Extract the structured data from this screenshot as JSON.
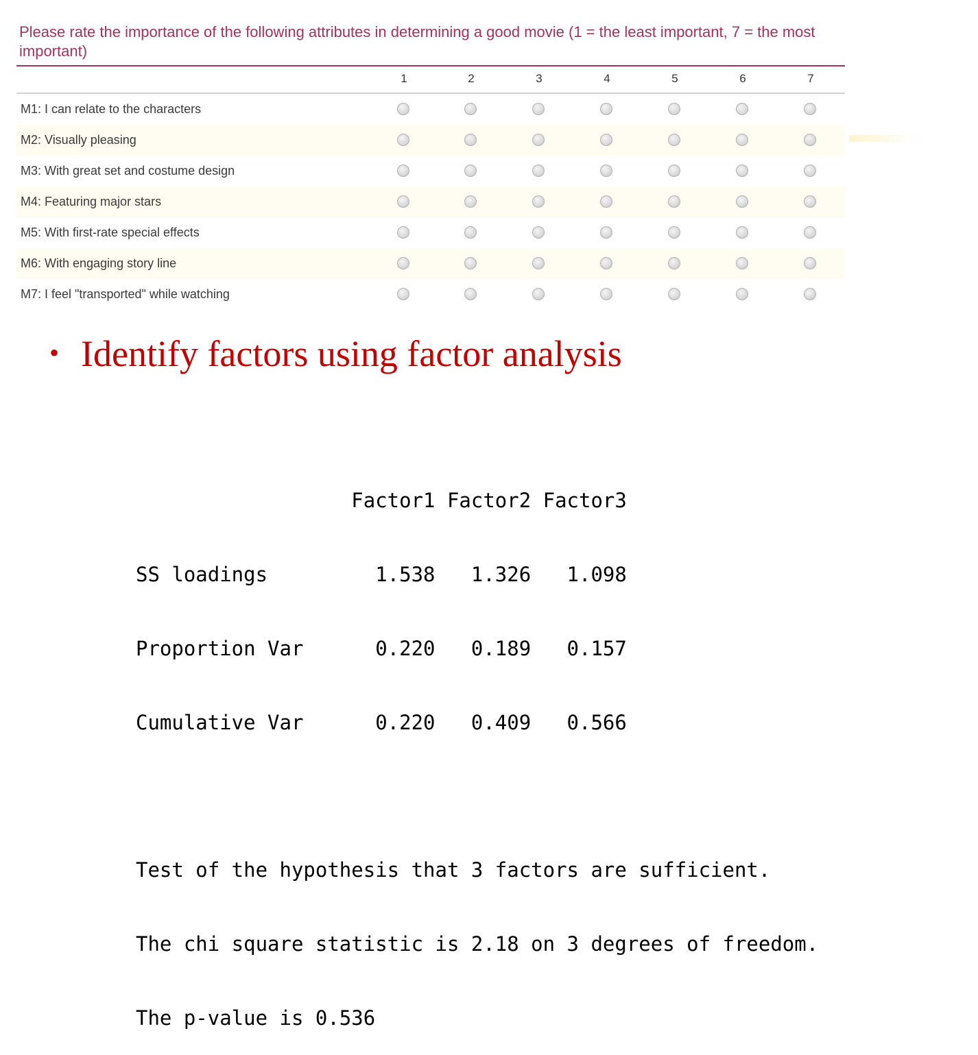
{
  "survey": {
    "question": "Please rate the importance of the following attributes in determining a good movie (1 = the least important, 7 = the most important)",
    "scale": [
      "1",
      "2",
      "3",
      "4",
      "5",
      "6",
      "7"
    ],
    "items": [
      "M1: I can relate to the characters",
      "M2: Visually pleasing",
      "M3: With great set and costume design",
      "M4: Featuring major stars",
      "M5: With first-rate special effects",
      "M6: With engaging story line",
      "M7: I feel \"transported\" while watching"
    ]
  },
  "slide": {
    "bullet": "Identify factors using factor analysis"
  },
  "output": {
    "header": "                  Factor1 Factor2 Factor3",
    "rows": [
      "SS loadings         1.538   1.326   1.098",
      "Proportion Var      0.220   0.189   0.157",
      "Cumulative Var      0.220   0.409   0.566"
    ],
    "test_lines": [
      "Test of the hypothesis that 3 factors are sufficient.",
      "The chi square statistic is 2.18 on 3 degrees of freedom.",
      "The p-value is 0.536"
    ]
  },
  "colors": {
    "question": "#a0345a",
    "bullet": "#c00000",
    "alt_row": "#fffdf1"
  }
}
